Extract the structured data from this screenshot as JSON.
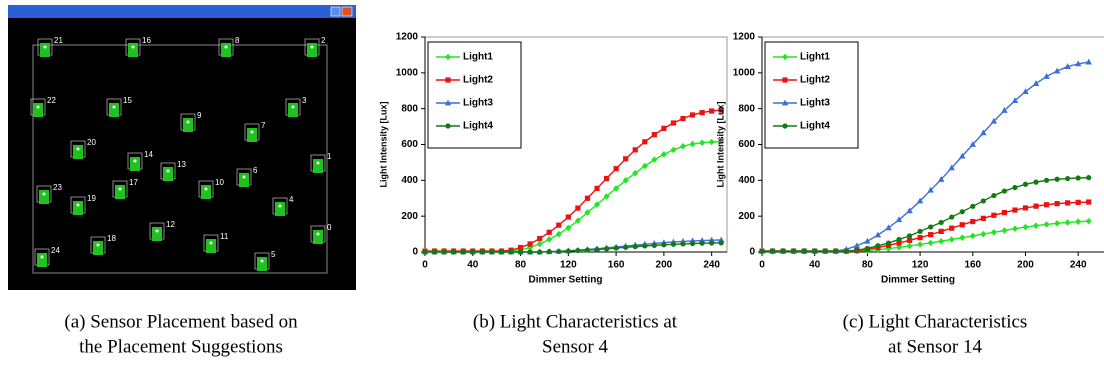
{
  "screenshot": {
    "sensors": [
      "21",
      "16",
      "8",
      "2",
      "22",
      "15",
      "3",
      "9",
      "7",
      "20",
      "14",
      "13",
      "1",
      "23",
      "17",
      "10",
      "6",
      "19",
      "4",
      "12",
      "11",
      "18",
      "0",
      "24",
      "5"
    ],
    "caption": [
      "(a) Sensor Placement based on",
      "the Placement Suggestions"
    ]
  },
  "chart_data": [
    {
      "type": "line",
      "caption": [
        "(b) Light Characteristics at",
        "Sensor 4"
      ],
      "x_label": "Dimmer Setting",
      "y_label": "Light Intensity [Lux]",
      "x": [
        0,
        8,
        16,
        24,
        32,
        40,
        48,
        56,
        64,
        72,
        80,
        88,
        96,
        104,
        112,
        120,
        128,
        136,
        144,
        152,
        160,
        168,
        176,
        184,
        192,
        200,
        208,
        216,
        224,
        232,
        240,
        248
      ],
      "xlim": [
        0,
        252
      ],
      "xticks": [
        0,
        40,
        80,
        120,
        160,
        200,
        240
      ],
      "ylim": [
        0,
        1200
      ],
      "yticks": [
        0,
        200,
        400,
        600,
        800,
        1000,
        1200
      ],
      "grid": false,
      "legend": "upper left",
      "series": [
        {
          "name": "Light1",
          "color": "#22e622",
          "marker": "diamond",
          "values": [
            5,
            5,
            5,
            5,
            5,
            5,
            5,
            5,
            5,
            5,
            12,
            25,
            45,
            70,
            100,
            135,
            175,
            220,
            265,
            310,
            355,
            400,
            440,
            480,
            515,
            545,
            570,
            590,
            603,
            610,
            614,
            616
          ]
        },
        {
          "name": "Light2",
          "color": "#ee1111",
          "marker": "square",
          "values": [
            5,
            5,
            5,
            5,
            5,
            5,
            5,
            5,
            5,
            10,
            25,
            45,
            75,
            110,
            150,
            195,
            245,
            300,
            355,
            410,
            465,
            520,
            570,
            615,
            655,
            690,
            720,
            745,
            765,
            778,
            787,
            792
          ]
        },
        {
          "name": "Light3",
          "color": "#3b6fd8",
          "marker": "triangle",
          "values": [
            0,
            0,
            0,
            0,
            0,
            0,
            0,
            0,
            0,
            0,
            0,
            0,
            0,
            2,
            4,
            7,
            10,
            14,
            18,
            23,
            28,
            33,
            38,
            43,
            48,
            52,
            56,
            59,
            62,
            64,
            66,
            67
          ]
        },
        {
          "name": "Light4",
          "color": "#127a12",
          "marker": "circle",
          "values": [
            0,
            0,
            0,
            0,
            0,
            0,
            0,
            0,
            0,
            0,
            0,
            0,
            0,
            2,
            3,
            5,
            8,
            11,
            14,
            18,
            22,
            26,
            30,
            34,
            37,
            40,
            43,
            45,
            47,
            49,
            50,
            51
          ]
        }
      ]
    },
    {
      "type": "line",
      "caption": [
        "(c)  Light Characteristics",
        "at Sensor 14"
      ],
      "x_label": "Dimmer Setting",
      "y_label": "Light Intensity [Lux]",
      "x": [
        0,
        8,
        16,
        24,
        32,
        40,
        48,
        56,
        64,
        72,
        80,
        88,
        96,
        104,
        112,
        120,
        128,
        136,
        144,
        152,
        160,
        168,
        176,
        184,
        192,
        200,
        208,
        216,
        224,
        232,
        240,
        248
      ],
      "xlim": [
        0,
        252
      ],
      "xticks": [
        0,
        40,
        80,
        120,
        160,
        200,
        240
      ],
      "ylim": [
        0,
        1200
      ],
      "yticks": [
        0,
        200,
        400,
        600,
        800,
        1000,
        1200
      ],
      "grid": false,
      "legend": "upper left",
      "series": [
        {
          "name": "Light1",
          "color": "#22e622",
          "marker": "diamond",
          "values": [
            5,
            5,
            5,
            5,
            5,
            5,
            5,
            5,
            5,
            5,
            8,
            13,
            19,
            26,
            34,
            42,
            51,
            60,
            70,
            80,
            90,
            100,
            110,
            120,
            130,
            139,
            147,
            154,
            160,
            165,
            169,
            172
          ]
        },
        {
          "name": "Light2",
          "color": "#ee1111",
          "marker": "square",
          "values": [
            5,
            5,
            5,
            5,
            5,
            5,
            5,
            5,
            5,
            8,
            15,
            25,
            37,
            50,
            65,
            80,
            97,
            115,
            133,
            152,
            170,
            188,
            205,
            220,
            234,
            246,
            256,
            264,
            270,
            274,
            277,
            279
          ]
        },
        {
          "name": "Light3",
          "color": "#3b6fd8",
          "marker": "triangle",
          "values": [
            5,
            5,
            5,
            5,
            5,
            5,
            5,
            5,
            15,
            35,
            60,
            95,
            135,
            180,
            230,
            285,
            345,
            405,
            470,
            535,
            600,
            665,
            730,
            790,
            845,
            895,
            940,
            980,
            1010,
            1035,
            1050,
            1060
          ]
        },
        {
          "name": "Light4",
          "color": "#127a12",
          "marker": "circle",
          "values": [
            5,
            5,
            5,
            5,
            5,
            5,
            5,
            5,
            5,
            10,
            20,
            35,
            50,
            70,
            90,
            115,
            140,
            165,
            195,
            225,
            255,
            285,
            315,
            340,
            360,
            378,
            390,
            400,
            406,
            410,
            413,
            415
          ]
        }
      ]
    }
  ]
}
